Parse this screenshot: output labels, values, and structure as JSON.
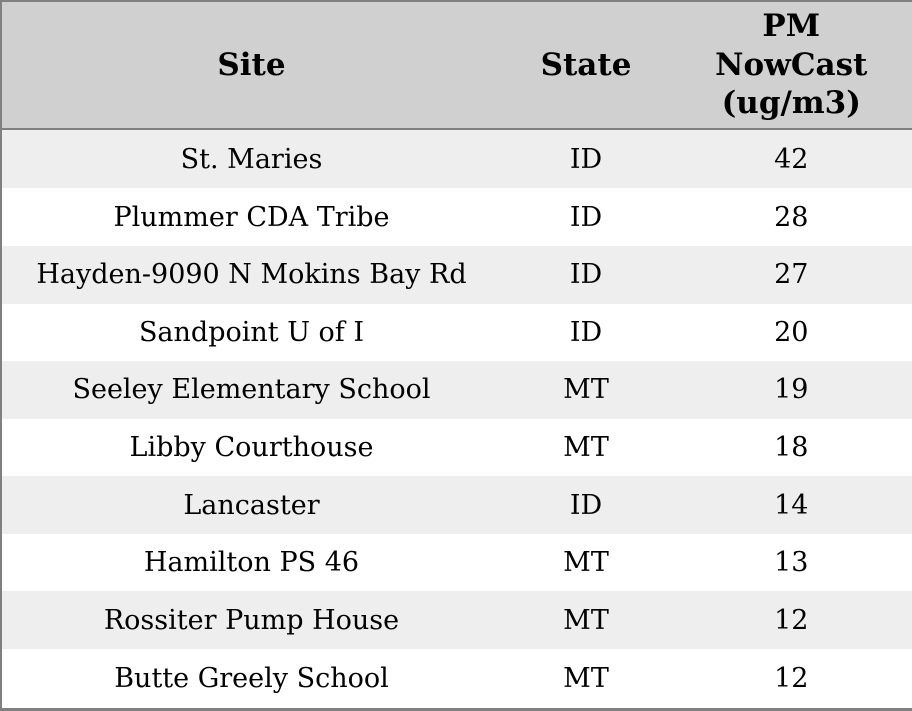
{
  "chart_data": {
    "type": "table",
    "title": "",
    "columns": [
      "Site",
      "State",
      "PM NowCast (ug/m3)"
    ],
    "rows": [
      [
        "St. Maries",
        "ID",
        42
      ],
      [
        "Plummer CDA Tribe",
        "ID",
        28
      ],
      [
        "Hayden-9090 N Mokins Bay Rd",
        "ID",
        27
      ],
      [
        "Sandpoint U of I",
        "ID",
        20
      ],
      [
        "Seeley Elementary School",
        "MT",
        19
      ],
      [
        "Libby Courthouse",
        "MT",
        18
      ],
      [
        "Lancaster",
        "ID",
        14
      ],
      [
        "Hamilton PS 46",
        "MT",
        13
      ],
      [
        "Rossiter Pump House",
        "MT",
        12
      ],
      [
        "Butte Greely School",
        "MT",
        12
      ]
    ]
  },
  "header_display": {
    "site": "Site",
    "state": "State",
    "pm": "PM\nNowCast\n(ug/m3)"
  },
  "colors": {
    "header_bg": "#d0d0d0",
    "row_odd_bg": "#eeeeee",
    "row_even_bg": "#ffffff",
    "border": "#808080",
    "text": "#000000"
  }
}
